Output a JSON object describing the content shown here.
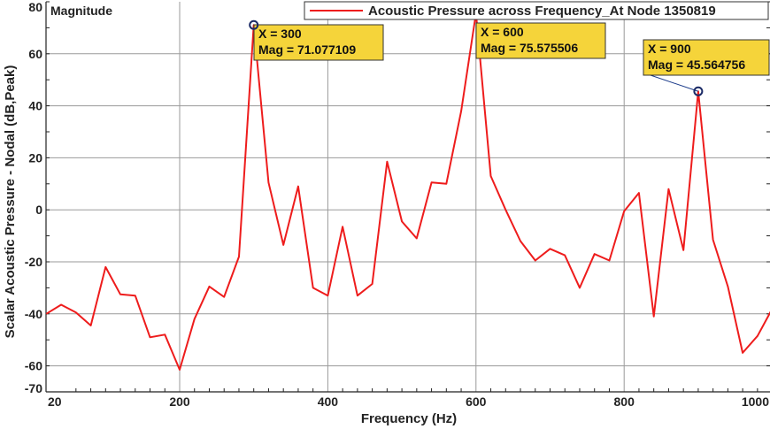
{
  "chart_data": {
    "type": "line",
    "title": "Magnitude",
    "xlabel": "Frequency (Hz)",
    "ylabel": "Scalar Acoustic Pressure - Nodal (dB,Peak)",
    "xlim": [
      20,
      1000
    ],
    "ylim": [
      -70,
      80
    ],
    "x_ticks": [
      {
        "value": 20,
        "label": "20"
      },
      {
        "value": 200,
        "label": "200"
      },
      {
        "value": 400,
        "label": "400"
      },
      {
        "value": 600,
        "label": "600"
      },
      {
        "value": 800,
        "label": "800"
      },
      {
        "value": 1000,
        "label": "1000"
      }
    ],
    "y_ticks": [
      {
        "value": 80,
        "label": "80"
      },
      {
        "value": 60,
        "label": "60"
      },
      {
        "value": 40,
        "label": "40"
      },
      {
        "value": 20,
        "label": "20"
      },
      {
        "value": 0,
        "label": "0"
      },
      {
        "value": -20,
        "label": "-20"
      },
      {
        "value": -40,
        "label": "-40"
      },
      {
        "value": -60,
        "label": "-60"
      },
      {
        "value": -70,
        "label": "-70"
      }
    ],
    "grid": true,
    "legend_position": "top-right",
    "series": [
      {
        "name": "Acoustic Pressure across Frequency_At Node 1350819",
        "color": "#ee1c1c",
        "x": [
          20,
          40,
          60,
          80,
          100,
          120,
          140,
          160,
          180,
          200,
          220,
          240,
          260,
          280,
          300,
          320,
          340,
          360,
          380,
          400,
          420,
          440,
          460,
          480,
          500,
          520,
          540,
          560,
          580,
          600,
          620,
          640,
          660,
          680,
          700,
          720,
          740,
          760,
          780,
          800,
          820,
          840,
          860,
          880,
          900,
          920,
          940,
          960,
          980,
          1000
        ],
        "y": [
          -40,
          -36.5,
          -39.5,
          -44.5,
          -22,
          -32.5,
          -33,
          -49,
          -48,
          -61.5,
          -42,
          -29.5,
          -33.5,
          -18,
          71.077109,
          10.5,
          -13.5,
          9,
          -30,
          -33,
          -6.5,
          -33,
          -28.5,
          18.5,
          -4.5,
          -11,
          10.5,
          10,
          38,
          75.575506,
          13,
          0,
          -12,
          -19.5,
          -15,
          -17.5,
          -30,
          -17,
          -19.5,
          -0.5,
          6.5,
          -41,
          8,
          -15.5,
          45.564756,
          -11.5,
          -29.5,
          -55,
          -48.5,
          -38
        ]
      }
    ],
    "datatips": [
      {
        "x_label": "X",
        "x_value": "300",
        "mag_label": "Mag",
        "mag_value": "71.077109",
        "x": 300,
        "y": 71.077109
      },
      {
        "x_label": "X",
        "x_value": "600",
        "mag_label": "Mag",
        "mag_value": "75.575506",
        "x": 600,
        "y": 75.575506
      },
      {
        "x_label": "X",
        "x_value": "900",
        "mag_label": "Mag",
        "mag_value": "45.564756",
        "x": 900,
        "y": 45.564756
      }
    ]
  },
  "colors": {
    "grid": "#9a9a9a",
    "axes": "#222222",
    "datatip_fill": "#f5d43a",
    "datatip_border": "#333333",
    "marker": "#1a2a66"
  }
}
